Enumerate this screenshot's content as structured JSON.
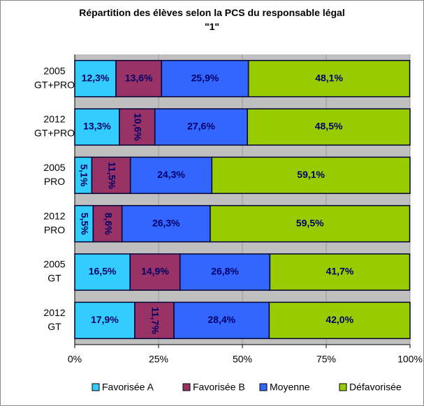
{
  "chart_data": {
    "type": "stacked-bar-horizontal",
    "title": "Répartition des élèves selon la PCS du responsable légal \"1\"",
    "categories": [
      [
        "2005",
        "GT+PRO"
      ],
      [
        "2012",
        "GT+PRO"
      ],
      [
        "2005",
        "PRO"
      ],
      [
        "2012",
        "PRO"
      ],
      [
        "2005",
        "GT"
      ],
      [
        "2012",
        "GT"
      ]
    ],
    "series": [
      {
        "name": "Favorisée A",
        "color": "#33ccff",
        "values": [
          12.3,
          13.3,
          5.1,
          5.5,
          16.5,
          17.9
        ],
        "value_labels": [
          "12,3%",
          "13,3%",
          "5,1%",
          "5,5%",
          "16,5%",
          "17,9%"
        ]
      },
      {
        "name": "Favorisée B",
        "color": "#993366",
        "values": [
          13.6,
          10.6,
          11.5,
          8.6,
          14.9,
          11.7
        ],
        "value_labels": [
          "13,6%",
          "10,6%",
          "11,5%",
          "8,6%",
          "14,9%",
          "11,7%"
        ]
      },
      {
        "name": "Moyenne",
        "color": "#3366ff",
        "values": [
          25.9,
          27.6,
          24.3,
          26.3,
          26.8,
          28.4
        ],
        "value_labels": [
          "25,9%",
          "27,6%",
          "24,3%",
          "26,3%",
          "26,8%",
          "28,4%"
        ]
      },
      {
        "name": "Défavorisée",
        "color": "#99cc00",
        "values": [
          48.1,
          48.5,
          59.1,
          59.5,
          41.7,
          42.0
        ],
        "value_labels": [
          "48,1%",
          "48,5%",
          "59,1%",
          "59,5%",
          "41,7%",
          "42,0%"
        ]
      }
    ],
    "xlim": [
      0,
      100
    ],
    "xticks": [
      {
        "value": 0,
        "label": "0%"
      },
      {
        "value": 25,
        "label": "25%"
      },
      {
        "value": 50,
        "label": "50%"
      },
      {
        "value": 75,
        "label": "75%"
      },
      {
        "value": 100,
        "label": "100%"
      }
    ],
    "grid": true,
    "legend": "bottom"
  }
}
